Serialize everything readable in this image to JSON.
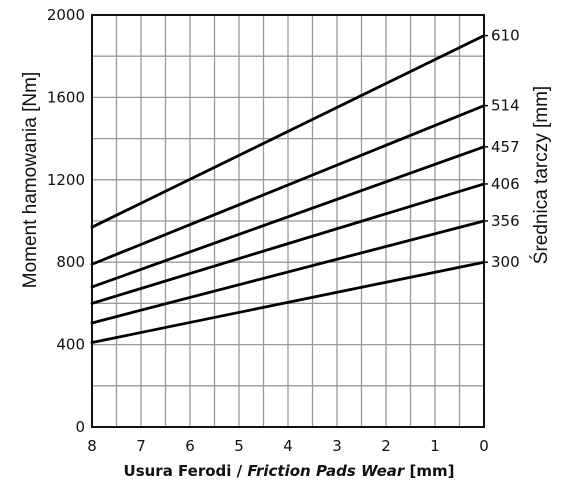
{
  "chart_data": {
    "type": "line",
    "title": "",
    "xlabel": {
      "part1": "Usura Ferodi",
      "separator": " / ",
      "part2": "Friction Pads Wear",
      "unit": " [mm]"
    },
    "ylabel": "Moment hamowania [Nm]",
    "y2label": "Średnica tarczy [mm]",
    "xlim": [
      8,
      0
    ],
    "ylim": [
      0,
      2000
    ],
    "x_ticks": [
      8,
      7,
      6,
      5,
      4,
      3,
      2,
      1,
      0
    ],
    "x_tick_labels": [
      "8",
      "7",
      "6",
      "5",
      "4",
      "3",
      "2",
      "1",
      "0"
    ],
    "y_ticks": [
      0,
      400,
      800,
      1200,
      1600,
      2000
    ],
    "y_tick_labels": [
      "0",
      "400",
      "800",
      "1200",
      "1600",
      "2000"
    ],
    "grid": true,
    "series": [
      {
        "name": "610",
        "x": [
          8,
          0
        ],
        "y": [
          970,
          1900
        ]
      },
      {
        "name": "514",
        "x": [
          8,
          0
        ],
        "y": [
          790,
          1560
        ]
      },
      {
        "name": "457",
        "x": [
          8,
          0
        ],
        "y": [
          680,
          1360
        ]
      },
      {
        "name": "406",
        "x": [
          8,
          0
        ],
        "y": [
          600,
          1180
        ]
      },
      {
        "name": "356",
        "x": [
          8,
          0
        ],
        "y": [
          505,
          1000
        ]
      },
      {
        "name": "300",
        "x": [
          8,
          0
        ],
        "y": [
          410,
          800
        ]
      }
    ]
  }
}
